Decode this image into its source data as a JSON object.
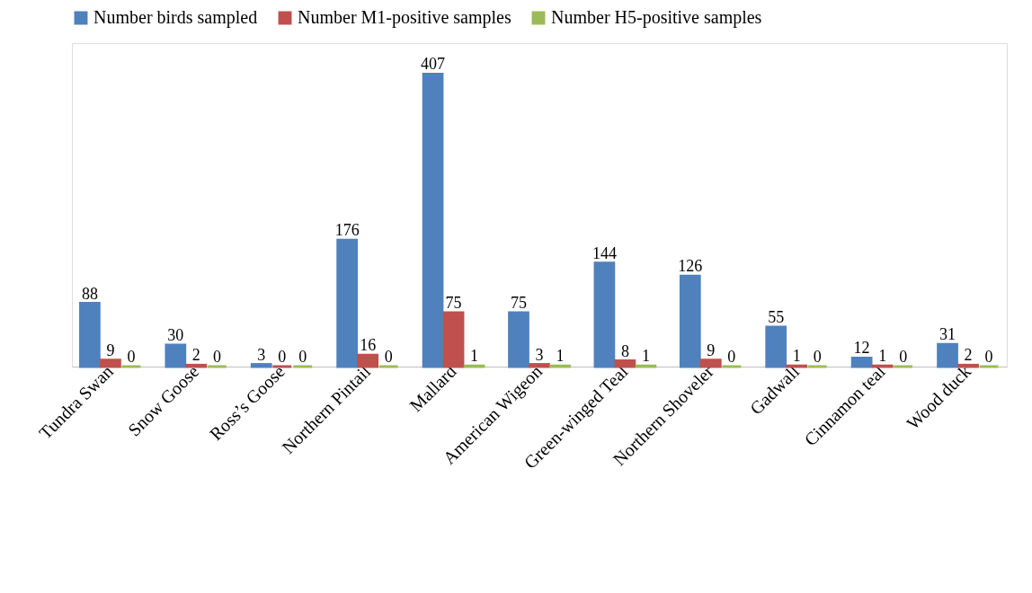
{
  "chart_data": {
    "type": "bar",
    "categories": [
      "Tundra Swan",
      "Snow Goose",
      "Ross’s Goose",
      "Northern Pintail",
      "Mallard",
      "American Wigeon",
      "Green-winged Teal",
      "Northern Shoveler",
      "Gadwall",
      "Cinnamon teal",
      "Wood duck"
    ],
    "series": [
      {
        "name": "Number birds sampled",
        "color": "#4f81bd",
        "values": [
          88,
          30,
          3,
          176,
          407,
          75,
          144,
          126,
          55,
          12,
          31
        ]
      },
      {
        "name": "Number M1-positive samples",
        "color": "#c0504d",
        "values": [
          9,
          2,
          0,
          16,
          75,
          3,
          8,
          9,
          1,
          1,
          2
        ]
      },
      {
        "name": "Number H5-positive samples",
        "color": "#9bbb59",
        "values": [
          0,
          0,
          0,
          0,
          1,
          1,
          1,
          0,
          0,
          0,
          0
        ]
      }
    ],
    "data_labels": true,
    "legend": "top",
    "grid": false,
    "tick_labels": "x"
  }
}
